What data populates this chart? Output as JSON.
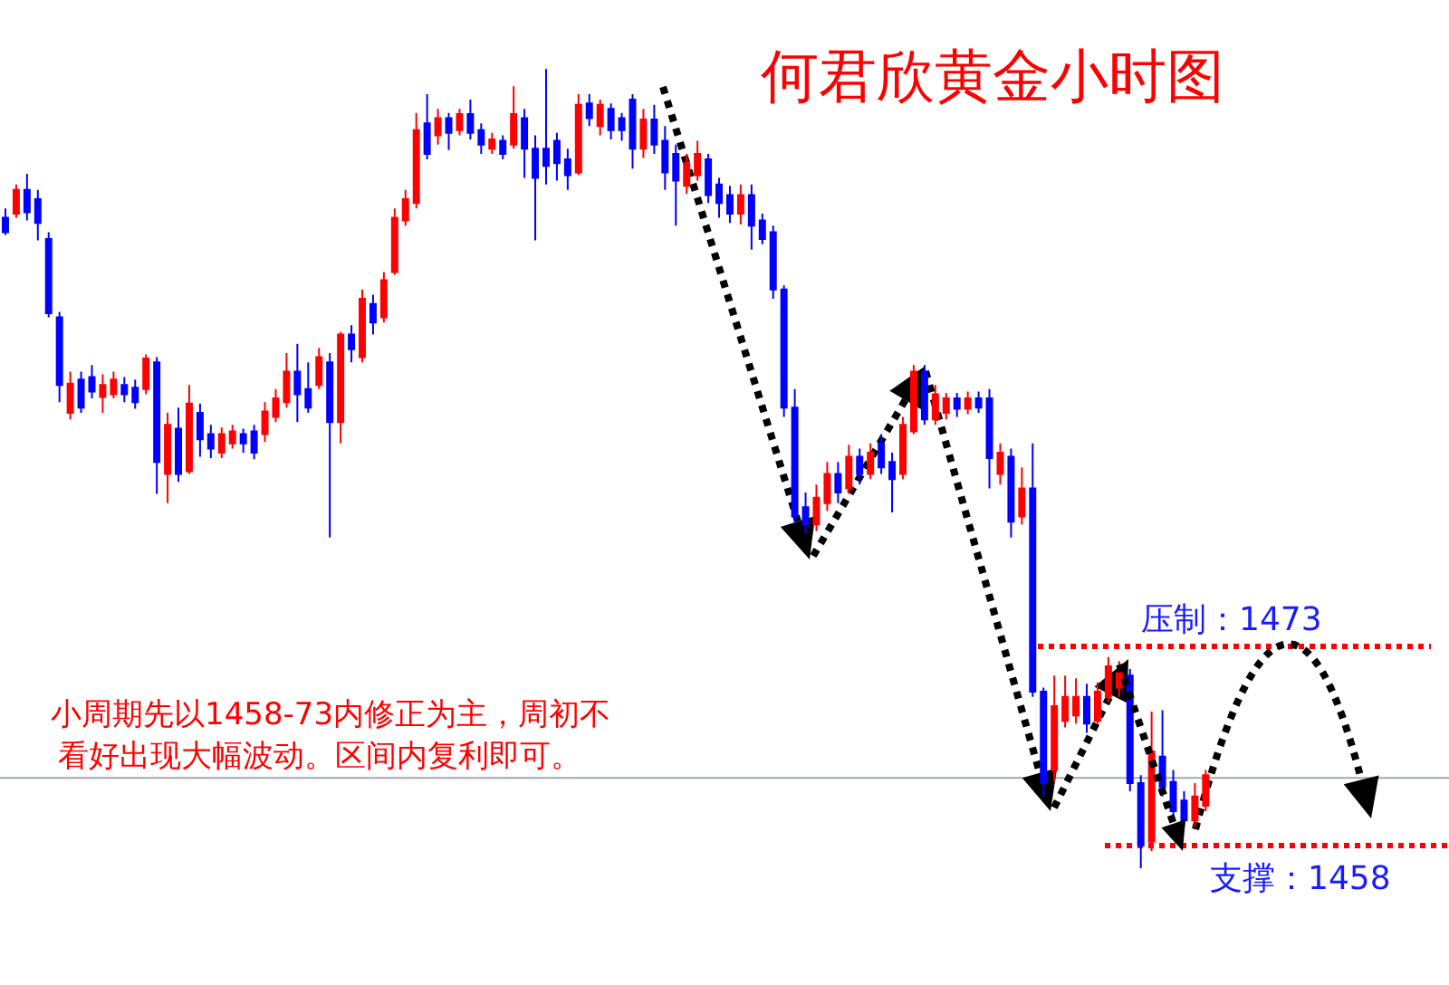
{
  "chart_data": {
    "type": "candlestick",
    "title": "何君欣黄金小时图",
    "annotations": [
      "小周期先以1458-73内修正为主，周初不看好出现大幅波动。区间内复利即可。"
    ],
    "categories": [
      null,
      null,
      null,
      null,
      null,
      null,
      null,
      null,
      null,
      null,
      null,
      null,
      null,
      null,
      null,
      null,
      null,
      null,
      null,
      null,
      null,
      null,
      null,
      null,
      null,
      null,
      null,
      null,
      null,
      null,
      null,
      null,
      null,
      null,
      null,
      null,
      null,
      null,
      null,
      null,
      null,
      null,
      null,
      null,
      null,
      null,
      null,
      null,
      null,
      null,
      null,
      null,
      null,
      null,
      null,
      null,
      null,
      null,
      null,
      null,
      null,
      null,
      null,
      null,
      null,
      null,
      null,
      null,
      null,
      null,
      null,
      null,
      null,
      null,
      null,
      null,
      null,
      null,
      null,
      null,
      null,
      null,
      null,
      null,
      null,
      null,
      null,
      null,
      null,
      null,
      null,
      null,
      null,
      null,
      null,
      null,
      null,
      null,
      null,
      null,
      null,
      null,
      null,
      null,
      null,
      null,
      null,
      null,
      null,
      null,
      null,
      null
    ],
    "ohlc": [
      [
        1505.3,
        1506.0,
        1504.0,
        1504.2
      ],
      [
        1505.6,
        1507.8,
        1505.3,
        1507.4
      ],
      [
        1507.4,
        1508.6,
        1505.1,
        1505.7
      ],
      [
        1506.7,
        1507.4,
        1503.6,
        1504.9
      ],
      [
        1503.7,
        1504.2,
        1497.8,
        1498.1
      ],
      [
        1497.8,
        1498.2,
        1491.4,
        1492.7
      ],
      [
        1490.6,
        1493.7,
        1490.1,
        1492.8
      ],
      [
        1493.1,
        1493.7,
        1490.6,
        1491.0
      ],
      [
        1493.3,
        1494.2,
        1491.7,
        1492.2
      ],
      [
        1491.8,
        1493.5,
        1490.6,
        1492.7
      ],
      [
        1492.0,
        1493.7,
        1491.7,
        1493.1
      ],
      [
        1492.7,
        1493.3,
        1491.4,
        1492.0
      ],
      [
        1492.5,
        1493.1,
        1490.9,
        1491.4
      ],
      [
        1492.4,
        1495.0,
        1492.0,
        1494.7
      ],
      [
        1494.4,
        1494.8,
        1484.5,
        1486.9
      ],
      [
        1486.0,
        1490.6,
        1483.8,
        1489.7
      ],
      [
        1489.4,
        1491.0,
        1485.4,
        1486.0
      ],
      [
        1486.2,
        1492.7,
        1486.0,
        1491.3
      ],
      [
        1490.6,
        1491.3,
        1487.3,
        1488.6
      ],
      [
        1489.0,
        1489.7,
        1487.2,
        1487.9
      ],
      [
        1487.6,
        1489.5,
        1487.2,
        1489.0
      ],
      [
        1488.3,
        1489.7,
        1487.9,
        1489.2
      ],
      [
        1489.0,
        1489.4,
        1487.6,
        1488.3
      ],
      [
        1489.2,
        1489.7,
        1487.1,
        1487.6
      ],
      [
        1489.0,
        1491.4,
        1488.4,
        1490.7
      ],
      [
        1490.3,
        1492.4,
        1489.9,
        1491.7
      ],
      [
        1491.4,
        1495.1,
        1491.0,
        1493.7
      ],
      [
        1493.7,
        1495.8,
        1489.9,
        1492.0
      ],
      [
        1492.4,
        1494.4,
        1490.6,
        1491.0
      ],
      [
        1492.7,
        1495.5,
        1492.4,
        1494.8
      ],
      [
        1494.4,
        1495.1,
        1481.2,
        1489.9
      ],
      [
        1489.9,
        1496.7,
        1488.3,
        1496.5
      ],
      [
        1496.5,
        1497.2,
        1494.4,
        1495.4
      ],
      [
        1494.8,
        1499.9,
        1494.4,
        1499.2
      ],
      [
        1498.8,
        1499.5,
        1496.5,
        1497.4
      ],
      [
        1497.8,
        1501.2,
        1497.4,
        1500.6
      ],
      [
        1501.2,
        1506.0,
        1501.0,
        1505.3
      ],
      [
        1505.1,
        1507.4,
        1504.7,
        1506.7
      ],
      [
        1506.4,
        1513.2,
        1506.0,
        1511.9
      ],
      [
        1512.4,
        1514.6,
        1509.7,
        1510.1
      ],
      [
        1511.5,
        1513.5,
        1510.8,
        1512.8
      ],
      [
        1512.8,
        1513.2,
        1510.4,
        1511.7
      ],
      [
        1511.9,
        1513.5,
        1511.5,
        1513.1
      ],
      [
        1513.1,
        1514.2,
        1511.2,
        1511.7
      ],
      [
        1511.9,
        1512.4,
        1510.1,
        1510.8
      ],
      [
        1510.5,
        1511.7,
        1510.1,
        1511.2
      ],
      [
        1511.1,
        1511.5,
        1509.7,
        1510.1
      ],
      [
        1510.8,
        1515.2,
        1510.5,
        1513.1
      ],
      [
        1512.8,
        1513.5,
        1508.3,
        1510.5
      ],
      [
        1510.5,
        1511.5,
        1503.6,
        1508.3
      ],
      [
        1510.5,
        1516.5,
        1507.8,
        1509.2
      ],
      [
        1511.1,
        1511.7,
        1508.1,
        1509.4
      ],
      [
        1509.7,
        1510.5,
        1507.4,
        1508.5
      ],
      [
        1508.7,
        1514.6,
        1508.5,
        1513.8
      ],
      [
        1513.9,
        1514.6,
        1512.2,
        1512.8
      ],
      [
        1512.2,
        1514.2,
        1511.5,
        1513.8
      ],
      [
        1513.5,
        1513.9,
        1511.2,
        1511.9
      ],
      [
        1512.8,
        1513.2,
        1511.1,
        1511.9
      ],
      [
        1514.2,
        1514.6,
        1509.0,
        1510.5
      ],
      [
        1510.5,
        1513.5,
        1509.8,
        1512.7
      ],
      [
        1512.7,
        1513.8,
        1510.1,
        1510.8
      ],
      [
        1511.1,
        1512.2,
        1507.4,
        1508.7
      ],
      [
        1510.1,
        1510.8,
        1504.7,
        1508.1
      ],
      [
        1507.7,
        1510.1,
        1507.1,
        1509.4
      ],
      [
        1508.5,
        1511.1,
        1508.1,
        1510.1
      ],
      [
        1509.7,
        1510.1,
        1506.4,
        1507.0
      ],
      [
        1507.8,
        1508.3,
        1505.3,
        1506.4
      ],
      [
        1507.0,
        1507.7,
        1504.9,
        1505.6
      ],
      [
        1505.6,
        1507.8,
        1504.8,
        1507.0
      ],
      [
        1507.0,
        1507.8,
        1502.9,
        1504.7
      ],
      [
        1505.1,
        1505.6,
        1503.3,
        1503.7
      ],
      [
        1504.2,
        1504.7,
        1499.2,
        1499.9
      ],
      [
        1499.9,
        1500.2,
        1490.3,
        1491.0
      ],
      [
        1491.0,
        1492.4,
        1482.2,
        1482.8
      ],
      [
        1483.5,
        1484.6,
        1481.5,
        1482.2
      ],
      [
        1482.2,
        1485.2,
        1481.7,
        1484.2
      ],
      [
        1483.8,
        1486.9,
        1483.2,
        1486.0
      ],
      [
        1486.0,
        1486.9,
        1483.8,
        1484.6
      ],
      [
        1484.9,
        1488.2,
        1484.5,
        1487.3
      ],
      [
        1487.3,
        1487.9,
        1485.2,
        1486.0
      ],
      [
        1486.0,
        1488.3,
        1485.6,
        1487.6
      ],
      [
        1488.3,
        1489.0,
        1486.0,
        1486.5
      ],
      [
        1486.9,
        1487.6,
        1483.1,
        1485.6
      ],
      [
        1486.0,
        1490.3,
        1485.6,
        1489.7
      ],
      [
        1489.2,
        1494.2,
        1489.0,
        1493.7
      ],
      [
        1493.7,
        1494.2,
        1489.7,
        1490.1
      ],
      [
        1490.1,
        1492.7,
        1489.7,
        1492.0
      ],
      [
        1490.6,
        1492.1,
        1490.1,
        1491.7
      ],
      [
        1491.7,
        1492.1,
        1490.3,
        1490.9
      ],
      [
        1490.9,
        1492.2,
        1490.5,
        1491.7
      ],
      [
        1491.7,
        1492.2,
        1490.6,
        1491.0
      ],
      [
        1491.7,
        1492.4,
        1484.9,
        1487.2
      ],
      [
        1486.0,
        1488.3,
        1485.2,
        1487.6
      ],
      [
        1487.3,
        1487.9,
        1481.2,
        1482.4
      ],
      [
        1482.8,
        1486.5,
        1482.2,
        1484.9
      ],
      [
        1484.9,
        1488.3,
        1469.2,
        1469.6
      ],
      [
        1469.6,
        1469.9,
        1461.7,
        1462.7
      ],
      [
        1463.7,
        1470.8,
        1462.8,
        1468.5
      ],
      [
        1467.4,
        1470.8,
        1466.9,
        1469.2
      ],
      [
        1467.8,
        1470.6,
        1467.2,
        1469.2
      ],
      [
        1469.2,
        1470.2,
        1466.5,
        1467.2
      ],
      [
        1467.4,
        1470.3,
        1467.2,
        1469.6
      ],
      [
        1469.2,
        1472.2,
        1468.8,
        1471.5
      ],
      [
        1469.9,
        1471.9,
        1469.2,
        1471.0
      ],
      [
        1470.8,
        1471.3,
        1462.1,
        1462.7
      ],
      [
        1462.7,
        1463.3,
        1456.3,
        1458.0
      ],
      [
        1458.3,
        1468.1,
        1457.6,
        1465.1
      ],
      [
        1464.7,
        1468.2,
        1461.7,
        1462.4
      ],
      [
        1462.8,
        1463.7,
        1460.1,
        1460.6
      ],
      [
        1461.4,
        1462.1,
        1459.4,
        1459.9
      ],
      [
        1459.9,
        1462.7,
        1459.4,
        1461.7
      ],
      [
        1461.0,
        1463.7,
        1460.6,
        1463.3
      ]
    ],
    "colors": [
      "#0000ff",
      "#ff0000",
      "#0000ff",
      "#0000ff",
      "#0000ff",
      "#0000ff",
      "#ff0000",
      "#0000ff",
      "#0000ff",
      "#ff0000",
      "#ff0000",
      "#0000ff",
      "#0000ff",
      "#ff0000",
      "#0000ff",
      "#ff0000",
      "#0000ff",
      "#ff0000",
      "#0000ff",
      "#0000ff",
      "#ff0000",
      "#ff0000",
      "#0000ff",
      "#0000ff",
      "#ff0000",
      "#ff0000",
      "#ff0000",
      "#0000ff",
      "#0000ff",
      "#ff0000",
      "#0000ff",
      "#ff0000",
      "#0000ff",
      "#ff0000",
      "#0000ff",
      "#ff0000",
      "#ff0000",
      "#ff0000",
      "#ff0000",
      "#0000ff",
      "#ff0000",
      "#0000ff",
      "#ff0000",
      "#0000ff",
      "#0000ff",
      "#ff0000",
      "#0000ff",
      "#ff0000",
      "#0000ff",
      "#0000ff",
      "#0000ff",
      "#0000ff",
      "#0000ff",
      "#ff0000",
      "#0000ff",
      "#ff0000",
      "#0000ff",
      "#0000ff",
      "#0000ff",
      "#ff0000",
      "#0000ff",
      "#0000ff",
      "#0000ff",
      "#ff0000",
      "#ff0000",
      "#0000ff",
      "#0000ff",
      "#0000ff",
      "#ff0000",
      "#0000ff",
      "#0000ff",
      "#0000ff",
      "#0000ff",
      "#0000ff",
      "#0000ff",
      "#ff0000",
      "#ff0000",
      "#0000ff",
      "#ff0000",
      "#0000ff",
      "#ff0000",
      "#0000ff",
      "#0000ff",
      "#ff0000",
      "#ff0000",
      "#0000ff",
      "#ff0000",
      "#ff0000",
      "#0000ff",
      "#ff0000",
      "#0000ff",
      "#0000ff",
      "#ff0000",
      "#0000ff",
      "#ff0000",
      "#0000ff",
      "#0000ff",
      "#ff0000",
      "#ff0000",
      "#ff0000",
      "#0000ff",
      "#ff0000",
      "#ff0000",
      "#ff0000",
      "#0000ff",
      "#0000ff",
      "#ff0000",
      "#0000ff",
      "#0000ff",
      "#0000ff",
      "#ff0000",
      "#ff0000"
    ],
    "ylim": [
      1447.5,
      1521.7
    ],
    "ref_lines": [
      {
        "axis": "y",
        "value": 1473,
        "label": "压制：1473",
        "color": "#ff0000",
        "line_style": "dotted"
      },
      {
        "axis": "y",
        "value": 1458,
        "label": "支撑：1458",
        "color": "#ff0000",
        "line_style": "dotted"
      },
      {
        "axis": "y",
        "value": 1463.1,
        "color": "#a0a8b4",
        "line_style": "solid"
      }
    ]
  }
}
